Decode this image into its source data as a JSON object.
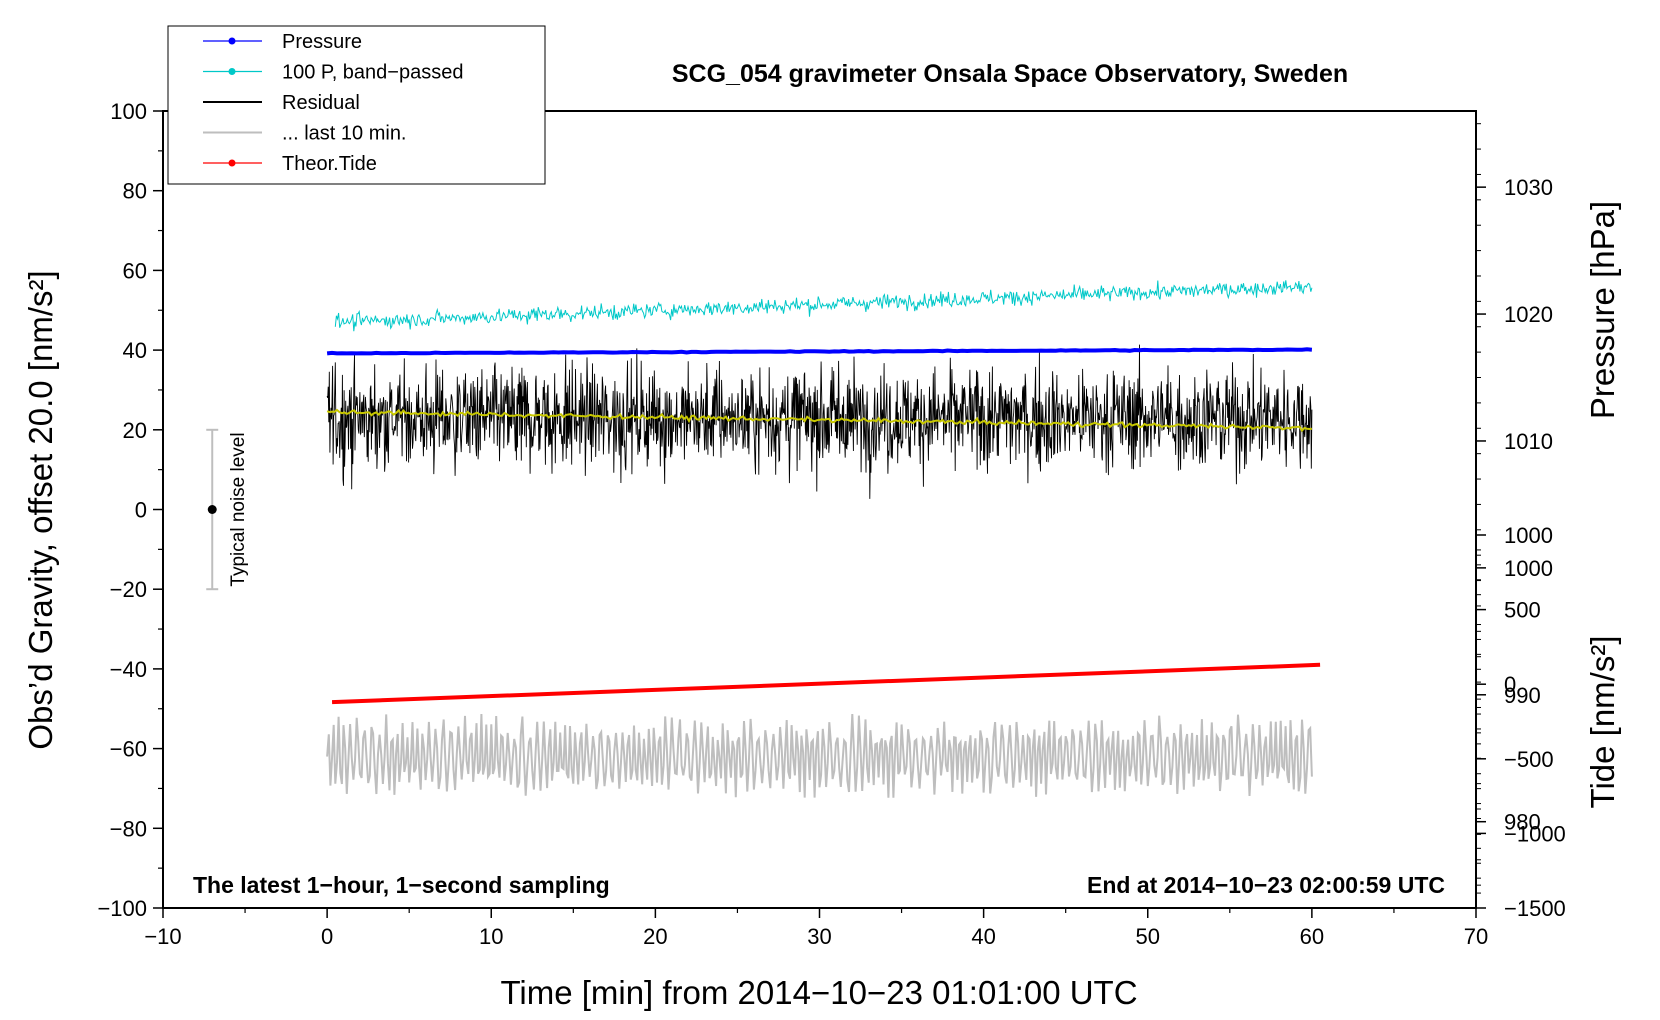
{
  "chart_data": {
    "type": "line",
    "title": "SCG_054 gravimeter Onsala Space Observatory, Sweden",
    "xlabel": "Time [min] from 2014−10−23 01:01:00 UTC",
    "ylabel_left": "Obs’d Gravity, offset 20.0 [nm/s²]",
    "ylabel_right_top": "Pressure [hPa]",
    "ylabel_right_bottom": "Tide [nm/s²]",
    "xlim": [
      -10,
      70
    ],
    "ylim_left": [
      -100,
      100
    ],
    "x_ticks": [
      -10,
      0,
      10,
      20,
      30,
      40,
      50,
      60,
      70
    ],
    "x_tick_labels": [
      "−10",
      "0",
      "10",
      "20",
      "30",
      "40",
      "50",
      "60",
      "70"
    ],
    "y_ticks_left": [
      -100,
      -80,
      -60,
      -40,
      -20,
      0,
      20,
      40,
      60,
      80,
      100
    ],
    "y_tick_labels_left": [
      "−100",
      "−80",
      "−60",
      "−40",
      "−20",
      "0",
      "20",
      "40",
      "60",
      "80",
      "100"
    ],
    "pressure_axis": {
      "ticks": [
        980,
        990,
        1000,
        1010,
        1020,
        1030
      ],
      "tick_labels": [
        "980",
        "990",
        "1000",
        "1010",
        "1020",
        "1030"
      ],
      "range": [
        973.2,
        1036.0
      ]
    },
    "tide_axis": {
      "ticks": [
        -1500,
        -1000,
        -500,
        0,
        500,
        1000
      ],
      "tick_labels": [
        "−1500",
        "−1000",
        "−500",
        "0",
        "500",
        "1000"
      ],
      "range": [
        -1500,
        1000
      ]
    },
    "legend": [
      {
        "label": "Pressure",
        "color": "#0000ff",
        "marker": true
      },
      {
        "label": "100 P, band−passed",
        "color": "#00c8c8",
        "marker": true
      },
      {
        "label": "Residual",
        "color": "#000000",
        "marker": false
      },
      {
        "label": "... last 10 min.",
        "color": "#bebebe",
        "marker": false
      },
      {
        "label": "Theor.Tide",
        "color": "#ff0000",
        "marker": true
      }
    ],
    "series": [
      {
        "name": "Pressure",
        "color": "#0000ff",
        "x_range": [
          0,
          60
        ],
        "start_hpa": 1016.9,
        "end_hpa": 1017.2
      },
      {
        "name": "100 P, band-passed",
        "color": "#00c8c8",
        "x_range": [
          0.5,
          60
        ],
        "start": 47,
        "end": 56,
        "noise_amplitude": 3
      },
      {
        "name": "Residual",
        "color": "#000000",
        "x_range": [
          0,
          60
        ],
        "mean": 23,
        "noise_amplitude": 10,
        "min": -5,
        "max": 44
      },
      {
        "name": "Residual smoothed",
        "color": "#c8c800",
        "x_range": [
          0,
          60
        ],
        "start": 24.5,
        "end": 20.5
      },
      {
        "name": "... last 10 min.",
        "color": "#bebebe",
        "x_range": [
          0,
          60
        ],
        "mean": -62,
        "noise_amplitude": 9,
        "min": -81,
        "max": -40
      },
      {
        "name": "Theor.Tide",
        "color": "#ff0000",
        "x_range": [
          0.3,
          60.5
        ],
        "start_nms2": -120,
        "end_nms2": 130
      }
    ],
    "noise_bar": {
      "label": "Typical noise level",
      "x": -7,
      "center": 0,
      "low": -20,
      "high": 20
    },
    "footer_left": "The latest 1−hour, 1−second sampling",
    "footer_right": "End at 2014−10−23 02:00:59 UTC"
  }
}
